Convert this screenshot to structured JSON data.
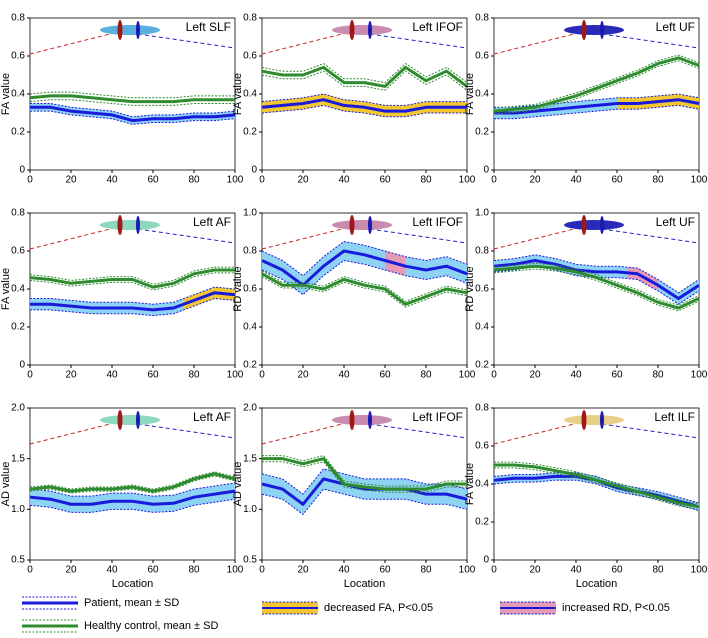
{
  "chart_data": [
    {
      "type": "line",
      "title": "Left SLF",
      "ylabel": "FA value",
      "x": [
        0,
        10,
        20,
        30,
        40,
        50,
        60,
        70,
        80,
        90,
        100
      ],
      "xlim": [
        0,
        100
      ],
      "xticks": [
        0,
        20,
        40,
        60,
        80,
        100
      ],
      "ylim": [
        0,
        0.8
      ],
      "yticks": [
        0,
        0.2,
        0.4,
        0.6,
        0.8
      ],
      "series": [
        {
          "color": "#1a1adb",
          "fill": "#8fd3f4",
          "values": [
            0.33,
            0.33,
            0.31,
            0.3,
            0.29,
            0.26,
            0.27,
            0.27,
            0.28,
            0.28,
            0.29
          ],
          "sd": 0.02
        },
        {
          "color": "#2e8b2e",
          "values": [
            0.38,
            0.39,
            0.39,
            0.38,
            0.37,
            0.36,
            0.36,
            0.36,
            0.37,
            0.37,
            0.37
          ],
          "sd": 0.02
        }
      ],
      "significant": [],
      "significant_color": "#f2c832"
    },
    {
      "type": "line",
      "title": "Left IFOF",
      "ylabel": "FA value",
      "x": [
        0,
        10,
        20,
        30,
        40,
        50,
        60,
        70,
        80,
        90,
        100
      ],
      "xlim": [
        0,
        100
      ],
      "xticks": [
        0,
        20,
        40,
        60,
        80,
        100
      ],
      "ylim": [
        0,
        0.8
      ],
      "yticks": [
        0,
        0.2,
        0.4,
        0.6,
        0.8
      ],
      "series": [
        {
          "color": "#1a1adb",
          "fill": "#8fd3f4",
          "values": [
            0.33,
            0.34,
            0.35,
            0.37,
            0.34,
            0.33,
            0.31,
            0.31,
            0.33,
            0.33,
            0.33
          ],
          "sd": 0.03
        },
        {
          "color": "#2e8b2e",
          "values": [
            0.52,
            0.5,
            0.5,
            0.54,
            0.46,
            0.46,
            0.44,
            0.54,
            0.47,
            0.52,
            0.44
          ],
          "sd": 0.02
        }
      ],
      "significant": [
        [
          0,
          100
        ]
      ],
      "significant_color": "#f2c832"
    },
    {
      "type": "line",
      "title": "Left UF",
      "ylabel": "FA value",
      "x": [
        0,
        10,
        20,
        30,
        40,
        50,
        60,
        70,
        80,
        90,
        100
      ],
      "xlim": [
        0,
        100
      ],
      "xticks": [
        0,
        20,
        40,
        60,
        80,
        100
      ],
      "ylim": [
        0,
        0.8
      ],
      "yticks": [
        0,
        0.2,
        0.4,
        0.6,
        0.8
      ],
      "series": [
        {
          "color": "#1a1adb",
          "fill": "#8fd3f4",
          "values": [
            0.3,
            0.3,
            0.31,
            0.32,
            0.33,
            0.34,
            0.35,
            0.35,
            0.36,
            0.37,
            0.35
          ],
          "sd": 0.03
        },
        {
          "color": "#2e8b2e",
          "values": [
            0.31,
            0.32,
            0.33,
            0.36,
            0.39,
            0.43,
            0.47,
            0.51,
            0.56,
            0.59,
            0.55
          ],
          "sd": 0.015
        }
      ],
      "significant": [
        [
          60,
          100
        ]
      ],
      "significant_color": "#f2c832"
    },
    {
      "type": "line",
      "title": "Left AF",
      "ylabel": "FA value",
      "x": [
        0,
        10,
        20,
        30,
        40,
        50,
        60,
        70,
        80,
        90,
        100
      ],
      "xlim": [
        0,
        100
      ],
      "xticks": [
        0,
        20,
        40,
        60,
        80,
        100
      ],
      "ylim": [
        0,
        0.8
      ],
      "yticks": [
        0,
        0.2,
        0.4,
        0.6,
        0.8
      ],
      "series": [
        {
          "color": "#1a1adb",
          "fill": "#8fd3f4",
          "values": [
            0.32,
            0.32,
            0.31,
            0.3,
            0.3,
            0.3,
            0.29,
            0.3,
            0.34,
            0.38,
            0.37
          ],
          "sd": 0.03
        },
        {
          "color": "#2e8b2e",
          "values": [
            0.46,
            0.45,
            0.43,
            0.44,
            0.45,
            0.45,
            0.41,
            0.43,
            0.48,
            0.5,
            0.5
          ],
          "sd": 0.015
        }
      ],
      "significant": [
        [
          75,
          100
        ]
      ],
      "significant_color": "#f2c832"
    },
    {
      "type": "line",
      "title": "Left IFOF",
      "ylabel": "RD value",
      "x": [
        0,
        10,
        20,
        30,
        40,
        50,
        60,
        70,
        80,
        90,
        100
      ],
      "xlim": [
        0,
        100
      ],
      "xticks": [
        0,
        20,
        40,
        60,
        80,
        100
      ],
      "ylim": [
        0.2,
        1
      ],
      "yticks": [
        0.2,
        0.4,
        0.6,
        0.8,
        {
          "value": 1,
          "label": "1.0"
        }
      ],
      "series": [
        {
          "color": "#1a1adb",
          "fill": "#8fd3f4",
          "values": [
            0.75,
            0.7,
            0.62,
            0.72,
            0.8,
            0.78,
            0.75,
            0.72,
            0.7,
            0.72,
            0.68
          ],
          "sd": 0.05
        },
        {
          "color": "#2e8b2e",
          "values": [
            0.68,
            0.62,
            0.62,
            0.6,
            0.65,
            0.62,
            0.6,
            0.52,
            0.56,
            0.6,
            0.58
          ],
          "sd": 0.015
        }
      ],
      "significant": [
        [
          60,
          70
        ]
      ],
      "significant_color": "#e79ab5"
    },
    {
      "type": "line",
      "title": "Left UF",
      "ylabel": "RD value",
      "x": [
        0,
        10,
        20,
        30,
        40,
        50,
        60,
        70,
        80,
        90,
        100
      ],
      "xlim": [
        0,
        100
      ],
      "xticks": [
        0,
        20,
        40,
        60,
        80,
        100
      ],
      "ylim": [
        0.2,
        1
      ],
      "yticks": [
        0.2,
        0.4,
        0.6,
        0.8,
        {
          "value": 1,
          "label": "1.0"
        }
      ],
      "series": [
        {
          "color": "#1a1adb",
          "fill": "#8fd3f4",
          "values": [
            0.72,
            0.73,
            0.75,
            0.73,
            0.7,
            0.69,
            0.69,
            0.68,
            0.62,
            0.55,
            0.62
          ],
          "sd": 0.03
        },
        {
          "color": "#2e8b2e",
          "values": [
            0.7,
            0.71,
            0.72,
            0.71,
            0.69,
            0.66,
            0.62,
            0.58,
            0.53,
            0.5,
            0.55
          ],
          "sd": 0.015
        }
      ],
      "significant": [
        [
          65,
          80
        ]
      ],
      "significant_color": "#e79ab5"
    },
    {
      "type": "line",
      "title": "Left AF",
      "ylabel": "AD value",
      "xlabel": "Location",
      "x": [
        0,
        10,
        20,
        30,
        40,
        50,
        60,
        70,
        80,
        90,
        100
      ],
      "xlim": [
        0,
        100
      ],
      "xticks": [
        0,
        20,
        40,
        60,
        80,
        100
      ],
      "ylim": [
        0.5,
        2
      ],
      "yticks": [
        0.5,
        {
          "value": 1,
          "label": "1.0"
        },
        1.5,
        {
          "value": 2,
          "label": "2.0"
        }
      ],
      "series": [
        {
          "color": "#1a1adb",
          "fill": "#8fd3f4",
          "values": [
            1.12,
            1.1,
            1.05,
            1.05,
            1.08,
            1.08,
            1.05,
            1.06,
            1.12,
            1.15,
            1.18
          ],
          "sd": 0.08
        },
        {
          "color": "#2e8b2e",
          "values": [
            1.2,
            1.22,
            1.18,
            1.2,
            1.2,
            1.22,
            1.18,
            1.22,
            1.3,
            1.35,
            1.3
          ],
          "sd": 0.02
        }
      ],
      "significant": [],
      "significant_color": "#f2c832"
    },
    {
      "type": "line",
      "title": "Left IFOF",
      "ylabel": "AD value",
      "xlabel": "Location",
      "x": [
        0,
        10,
        20,
        30,
        40,
        50,
        60,
        70,
        80,
        90,
        100
      ],
      "xlim": [
        0,
        100
      ],
      "xticks": [
        0,
        20,
        40,
        60,
        80,
        100
      ],
      "ylim": [
        0.5,
        2
      ],
      "yticks": [
        0.5,
        {
          "value": 1,
          "label": "1.0"
        },
        1.5,
        {
          "value": 2,
          "label": "2.0"
        }
      ],
      "series": [
        {
          "color": "#1a1adb",
          "fill": "#8fd3f4",
          "values": [
            1.25,
            1.2,
            1.05,
            1.3,
            1.25,
            1.2,
            1.2,
            1.2,
            1.15,
            1.15,
            1.1
          ],
          "sd": 0.1
        },
        {
          "color": "#2e8b2e",
          "values": [
            1.5,
            1.5,
            1.45,
            1.5,
            1.25,
            1.22,
            1.2,
            1.2,
            1.2,
            1.25,
            1.25
          ],
          "sd": 0.03
        }
      ],
      "significant": [],
      "significant_color": "#f2c832"
    },
    {
      "type": "line",
      "title": "Left ILF",
      "ylabel": "FA value",
      "xlabel": "Location",
      "x": [
        0,
        10,
        20,
        30,
        40,
        50,
        60,
        70,
        80,
        90,
        100
      ],
      "xlim": [
        0,
        100
      ],
      "xticks": [
        0,
        20,
        40,
        60,
        80,
        100
      ],
      "ylim": [
        0,
        0.8
      ],
      "yticks": [
        0,
        0.2,
        0.4,
        0.6,
        0.8
      ],
      "series": [
        {
          "color": "#1a1adb",
          "fill": "#8fd3f4",
          "values": [
            0.42,
            0.43,
            0.43,
            0.44,
            0.44,
            0.42,
            0.38,
            0.36,
            0.34,
            0.31,
            0.28
          ],
          "sd": 0.02
        },
        {
          "color": "#2e8b2e",
          "values": [
            0.5,
            0.5,
            0.49,
            0.47,
            0.45,
            0.42,
            0.39,
            0.36,
            0.33,
            0.3,
            0.28
          ],
          "sd": 0.015
        }
      ],
      "significant": [],
      "significant_color": "#f2c832"
    }
  ],
  "legend": [
    {
      "label": "Patient, mean ± SD",
      "color": "#1a1adb"
    },
    {
      "label": "Healthy control, mean ± SD",
      "color": "#2e8b2e"
    },
    {
      "label": "decreased FA, P<0.05",
      "color": "#f2c832"
    },
    {
      "label": "increased RD, P<0.05",
      "color": "#e79ab5"
    }
  ]
}
